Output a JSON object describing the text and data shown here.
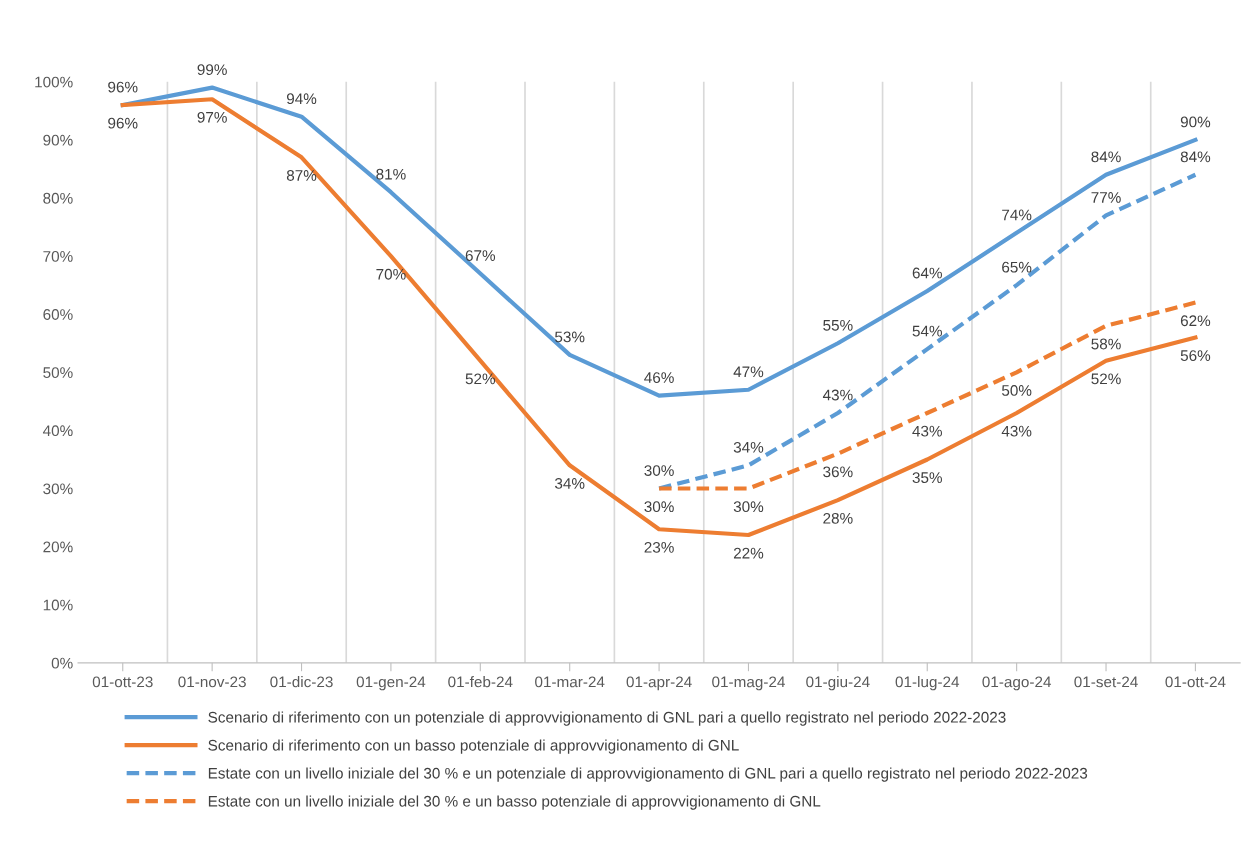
{
  "chart_data": {
    "type": "line",
    "categories": [
      "01-ott-23",
      "01-nov-23",
      "01-dic-23",
      "01-gen-24",
      "01-feb-24",
      "01-mar-24",
      "01-apr-24",
      "01-mag-24",
      "01-giu-24",
      "01-lug-24",
      "01-ago-24",
      "01-set-24",
      "01-ott-24"
    ],
    "series": [
      {
        "name": "Scenario di riferimento con un potenziale di approvvigionamento di GNL pari a quello registrato nel periodo 2022-2023",
        "color": "#5b9bd5",
        "line_style": "solid",
        "values": [
          96,
          99,
          94,
          81,
          67,
          53,
          46,
          47,
          55,
          64,
          74,
          84,
          90
        ],
        "value_labels": [
          "96%",
          "99%",
          "94%",
          "81%",
          "67%",
          "53%",
          "46%",
          "47%",
          "55%",
          "64%",
          "74%",
          "84%",
          "90%"
        ]
      },
      {
        "name": "Scenario di riferimento con un basso potenziale di approvvigionamento di GNL",
        "color": "#ed7d31",
        "line_style": "solid",
        "values": [
          96,
          97,
          87,
          70,
          52,
          34,
          23,
          22,
          28,
          35,
          43,
          52,
          56
        ],
        "value_labels": [
          "96%",
          "97%",
          "87%",
          "70%",
          "52%",
          "34%",
          "23%",
          "22%",
          "28%",
          "35%",
          "43%",
          "52%",
          "56%"
        ]
      },
      {
        "name": "Estate con un livello iniziale del 30 % e un potenziale di approvvigionamento di GNL pari a quello registrato nel periodo 2022-2023",
        "color": "#5b9bd5",
        "line_style": "dashed",
        "values": [
          null,
          null,
          null,
          null,
          null,
          null,
          30,
          34,
          43,
          54,
          65,
          77,
          84
        ],
        "value_labels": [
          null,
          null,
          null,
          null,
          null,
          null,
          "30%",
          "34%",
          "43%",
          "54%",
          "65%",
          "77%",
          "84%"
        ]
      },
      {
        "name": "Estate con un livello iniziale del 30 % e un basso potenziale di approvvigionamento di GNL",
        "color": "#ed7d31",
        "line_style": "dashed",
        "values": [
          null,
          null,
          null,
          null,
          null,
          null,
          30,
          30,
          36,
          43,
          50,
          58,
          62
        ],
        "value_labels": [
          null,
          null,
          null,
          null,
          null,
          null,
          "30%",
          "30%",
          "36%",
          "43%",
          "50%",
          "58%",
          "62%"
        ]
      }
    ],
    "ylim": [
      0,
      100
    ],
    "yticks": [
      {
        "value": 0,
        "label": "0%"
      },
      {
        "value": 10,
        "label": "10%"
      },
      {
        "value": 20,
        "label": "20%"
      },
      {
        "value": 30,
        "label": "30%"
      },
      {
        "value": 40,
        "label": "40%"
      },
      {
        "value": 50,
        "label": "50%"
      },
      {
        "value": 60,
        "label": "60%"
      },
      {
        "value": 70,
        "label": "70%"
      },
      {
        "value": 80,
        "label": "80%"
      },
      {
        "value": 90,
        "label": "90%"
      },
      {
        "value": 100,
        "label": "100%"
      }
    ],
    "grid": "x",
    "legend": "bottom",
    "marker": "none"
  }
}
